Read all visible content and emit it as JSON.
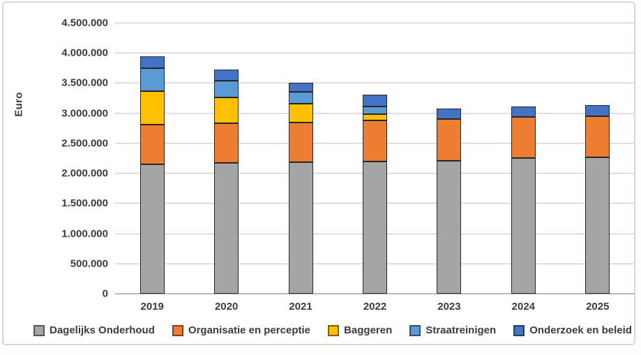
{
  "chart_data": {
    "type": "bar",
    "stacked": true,
    "title": "",
    "ylabel": "Euro",
    "xlabel": "",
    "categories": [
      "2019",
      "2020",
      "2021",
      "2022",
      "2023",
      "2024",
      "2025"
    ],
    "series": [
      {
        "name": "Dagelijks Onderhoud",
        "color": "#A5A5A5",
        "values": [
          2150000,
          2170000,
          2190000,
          2200000,
          2210000,
          2260000,
          2270000
        ]
      },
      {
        "name": "Organisatie en perceptie",
        "color": "#ED7D31",
        "values": [
          660000,
          660000,
          660000,
          680000,
          690000,
          675000,
          685000
        ]
      },
      {
        "name": "Baggeren",
        "color": "#FFC000",
        "values": [
          560000,
          430000,
          310000,
          110000,
          0,
          0,
          0
        ]
      },
      {
        "name": "Straatreinigen",
        "color": "#5B9BD5",
        "values": [
          380000,
          280000,
          200000,
          120000,
          0,
          0,
          0
        ]
      },
      {
        "name": "Onderzoek en beleid",
        "color": "#4472C4",
        "values": [
          200000,
          190000,
          150000,
          200000,
          175000,
          180000,
          185000
        ]
      }
    ],
    "ylim": [
      0,
      4500000
    ],
    "ytick_step": 500000,
    "yticks": [
      "0",
      "500.000",
      "1.000.000",
      "1.500.000",
      "2.000.000",
      "2.500.000",
      "3.000.000",
      "3.500.000",
      "4.000.000",
      "4.500.000"
    ],
    "grid": true,
    "legend_position": "bottom",
    "bar_border_color": "#262626"
  }
}
